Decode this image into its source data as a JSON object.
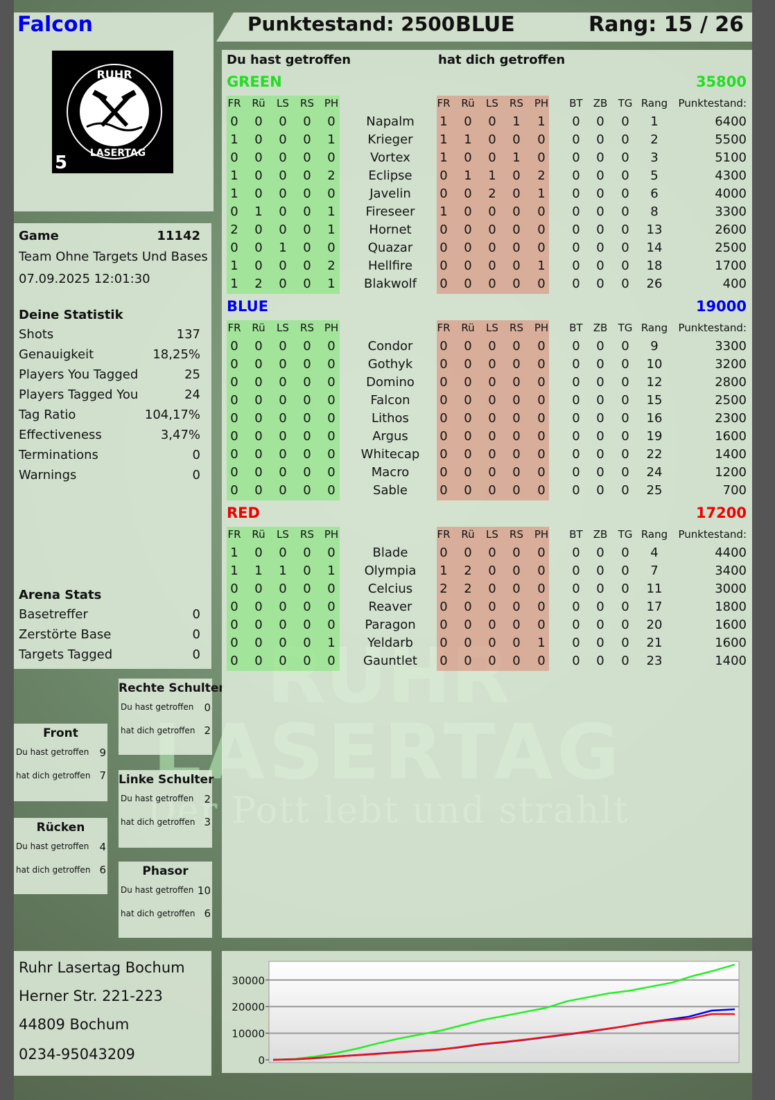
{
  "header": {
    "player": "Falcon",
    "player_color": "#0000ee",
    "score_label": "Punktestand: 2500",
    "team": "BLUE",
    "rank_label": "Rang: 15 / 26"
  },
  "logo": {
    "top": "RUHR",
    "bottom": "LASERTAG",
    "number": "5"
  },
  "game": {
    "label": "Game",
    "id": "11142",
    "mode": "Team Ohne Targets Und Bases",
    "datetime": "07.09.2025 12:01:30"
  },
  "stats": {
    "title": "Deine Statistik",
    "items": [
      {
        "label": "Shots",
        "value": "137"
      },
      {
        "label": "Genauigkeit",
        "value": "18,25%"
      },
      {
        "label": "Players You Tagged",
        "value": "25"
      },
      {
        "label": "Players Tagged You",
        "value": "24"
      },
      {
        "label": "Tag Ratio",
        "value": "104,17%"
      },
      {
        "label": "Effectiveness",
        "value": "3,47%"
      },
      {
        "label": "Terminations",
        "value": "0"
      },
      {
        "label": "Warnings",
        "value": "0"
      }
    ]
  },
  "arena": {
    "title": "Arena Stats",
    "items": [
      {
        "label": "Basetreffer",
        "value": "0"
      },
      {
        "label": "Zerstörte Base",
        "value": "0"
      },
      {
        "label": "Targets Tagged",
        "value": "0"
      }
    ]
  },
  "zones": [
    {
      "title": "Rechte Schulter",
      "hit_label": "Du hast getroffen",
      "hit": "0",
      "got_label": "hat dich getroffen",
      "got": "2"
    },
    {
      "title": "Front",
      "hit_label": "Du hast getroffen",
      "hit": "9",
      "got_label": "hat dich getroffen",
      "got": "7"
    },
    {
      "title": "Linke Schulter",
      "hit_label": "Du hast getroffen",
      "hit": "2",
      "got_label": "hat dich getroffen",
      "got": "3"
    },
    {
      "title": "Rücken",
      "hit_label": "Du hast getroffen",
      "hit": "4",
      "got_label": "hat dich getroffen",
      "got": "6"
    },
    {
      "title": "Phasor",
      "hit_label": "Du hast getroffen",
      "hit": "10",
      "got_label": "hat dich getroffen",
      "got": "6"
    }
  ],
  "address": {
    "name": "Ruhr Lasertag Bochum",
    "street": "Herner Str. 221-223",
    "city": "44809 Bochum",
    "phone": "0234-95043209"
  },
  "watermark": {
    "line1": "RUHR",
    "line2": "LASERTAG",
    "line3": "Der Pott lebt und strahlt"
  },
  "table": {
    "you_hit": "Du hast getroffen",
    "hit_you": "hat dich getroffen",
    "hit_cols": [
      "FR",
      "Rü",
      "LS",
      "RS",
      "PH"
    ],
    "extra_cols": [
      "BT",
      "ZB",
      "TG",
      "Rang",
      "Punktestand:"
    ],
    "teams": [
      {
        "name": "GREEN",
        "score": "35800",
        "color": "#22dd22",
        "players": [
          {
            "n": "Napalm",
            "h": [
              0,
              0,
              0,
              0,
              0
            ],
            "g": [
              1,
              0,
              0,
              1,
              1
            ],
            "e": [
              0,
              0,
              0
            ],
            "rank": 1,
            "pts": 6400
          },
          {
            "n": "Krieger",
            "h": [
              1,
              0,
              0,
              0,
              1
            ],
            "g": [
              1,
              1,
              0,
              0,
              0
            ],
            "e": [
              0,
              0,
              0
            ],
            "rank": 2,
            "pts": 5500
          },
          {
            "n": "Vortex",
            "h": [
              0,
              0,
              0,
              0,
              0
            ],
            "g": [
              1,
              0,
              0,
              1,
              0
            ],
            "e": [
              0,
              0,
              0
            ],
            "rank": 3,
            "pts": 5100
          },
          {
            "n": "Eclipse",
            "h": [
              1,
              0,
              0,
              0,
              2
            ],
            "g": [
              0,
              1,
              1,
              0,
              2
            ],
            "e": [
              0,
              0,
              0
            ],
            "rank": 5,
            "pts": 4300
          },
          {
            "n": "Javelin",
            "h": [
              1,
              0,
              0,
              0,
              0
            ],
            "g": [
              0,
              0,
              2,
              0,
              1
            ],
            "e": [
              0,
              0,
              0
            ],
            "rank": 6,
            "pts": 4000
          },
          {
            "n": "Fireseer",
            "h": [
              0,
              1,
              0,
              0,
              1
            ],
            "g": [
              1,
              0,
              0,
              0,
              0
            ],
            "e": [
              0,
              0,
              0
            ],
            "rank": 8,
            "pts": 3300
          },
          {
            "n": "Hornet",
            "h": [
              2,
              0,
              0,
              0,
              1
            ],
            "g": [
              0,
              0,
              0,
              0,
              0
            ],
            "e": [
              0,
              0,
              0
            ],
            "rank": 13,
            "pts": 2600
          },
          {
            "n": "Quazar",
            "h": [
              0,
              0,
              1,
              0,
              0
            ],
            "g": [
              0,
              0,
              0,
              0,
              0
            ],
            "e": [
              0,
              0,
              0
            ],
            "rank": 14,
            "pts": 2500
          },
          {
            "n": "Hellfire",
            "h": [
              1,
              0,
              0,
              0,
              2
            ],
            "g": [
              0,
              0,
              0,
              0,
              1
            ],
            "e": [
              0,
              0,
              0
            ],
            "rank": 18,
            "pts": 1700
          },
          {
            "n": "Blakwolf",
            "h": [
              1,
              2,
              0,
              0,
              1
            ],
            "g": [
              0,
              0,
              0,
              0,
              0
            ],
            "e": [
              0,
              0,
              0
            ],
            "rank": 26,
            "pts": 400
          }
        ]
      },
      {
        "name": "BLUE",
        "score": "19000",
        "color": "#0000ee",
        "players": [
          {
            "n": "Condor",
            "h": [
              0,
              0,
              0,
              0,
              0
            ],
            "g": [
              0,
              0,
              0,
              0,
              0
            ],
            "e": [
              0,
              0,
              0
            ],
            "rank": 9,
            "pts": 3300
          },
          {
            "n": "Gothyk",
            "h": [
              0,
              0,
              0,
              0,
              0
            ],
            "g": [
              0,
              0,
              0,
              0,
              0
            ],
            "e": [
              0,
              0,
              0
            ],
            "rank": 10,
            "pts": 3200
          },
          {
            "n": "Domino",
            "h": [
              0,
              0,
              0,
              0,
              0
            ],
            "g": [
              0,
              0,
              0,
              0,
              0
            ],
            "e": [
              0,
              0,
              0
            ],
            "rank": 12,
            "pts": 2800
          },
          {
            "n": "Falcon",
            "h": [
              0,
              0,
              0,
              0,
              0
            ],
            "g": [
              0,
              0,
              0,
              0,
              0
            ],
            "e": [
              0,
              0,
              0
            ],
            "rank": 15,
            "pts": 2500
          },
          {
            "n": "Lithos",
            "h": [
              0,
              0,
              0,
              0,
              0
            ],
            "g": [
              0,
              0,
              0,
              0,
              0
            ],
            "e": [
              0,
              0,
              0
            ],
            "rank": 16,
            "pts": 2300
          },
          {
            "n": "Argus",
            "h": [
              0,
              0,
              0,
              0,
              0
            ],
            "g": [
              0,
              0,
              0,
              0,
              0
            ],
            "e": [
              0,
              0,
              0
            ],
            "rank": 19,
            "pts": 1600
          },
          {
            "n": "Whitecap",
            "h": [
              0,
              0,
              0,
              0,
              0
            ],
            "g": [
              0,
              0,
              0,
              0,
              0
            ],
            "e": [
              0,
              0,
              0
            ],
            "rank": 22,
            "pts": 1400
          },
          {
            "n": "Macro",
            "h": [
              0,
              0,
              0,
              0,
              0
            ],
            "g": [
              0,
              0,
              0,
              0,
              0
            ],
            "e": [
              0,
              0,
              0
            ],
            "rank": 24,
            "pts": 1200
          },
          {
            "n": "Sable",
            "h": [
              0,
              0,
              0,
              0,
              0
            ],
            "g": [
              0,
              0,
              0,
              0,
              0
            ],
            "e": [
              0,
              0,
              0
            ],
            "rank": 25,
            "pts": 700
          }
        ]
      },
      {
        "name": "RED",
        "score": "17200",
        "color": "#ee0000",
        "players": [
          {
            "n": "Blade",
            "h": [
              1,
              0,
              0,
              0,
              0
            ],
            "g": [
              0,
              0,
              0,
              0,
              0
            ],
            "e": [
              0,
              0,
              0
            ],
            "rank": 4,
            "pts": 4400
          },
          {
            "n": "Olympia",
            "h": [
              1,
              1,
              1,
              0,
              1
            ],
            "g": [
              1,
              2,
              0,
              0,
              0
            ],
            "e": [
              0,
              0,
              0
            ],
            "rank": 7,
            "pts": 3400
          },
          {
            "n": "Celcius",
            "h": [
              0,
              0,
              0,
              0,
              0
            ],
            "g": [
              2,
              2,
              0,
              0,
              0
            ],
            "e": [
              0,
              0,
              0
            ],
            "rank": 11,
            "pts": 3000
          },
          {
            "n": "Reaver",
            "h": [
              0,
              0,
              0,
              0,
              0
            ],
            "g": [
              0,
              0,
              0,
              0,
              0
            ],
            "e": [
              0,
              0,
              0
            ],
            "rank": 17,
            "pts": 1800
          },
          {
            "n": "Paragon",
            "h": [
              0,
              0,
              0,
              0,
              0
            ],
            "g": [
              0,
              0,
              0,
              0,
              0
            ],
            "e": [
              0,
              0,
              0
            ],
            "rank": 20,
            "pts": 1600
          },
          {
            "n": "Yeldarb",
            "h": [
              0,
              0,
              0,
              0,
              1
            ],
            "g": [
              0,
              0,
              0,
              0,
              1
            ],
            "e": [
              0,
              0,
              0
            ],
            "rank": 21,
            "pts": 1600
          },
          {
            "n": "Gauntlet",
            "h": [
              0,
              0,
              0,
              0,
              0
            ],
            "g": [
              0,
              0,
              0,
              0,
              0
            ],
            "e": [
              0,
              0,
              0
            ],
            "rank": 23,
            "pts": 1400
          }
        ]
      }
    ]
  },
  "chart_data": {
    "type": "line",
    "title": "",
    "xlabel": "",
    "ylabel": "",
    "ylim": [
      0,
      37000
    ],
    "yticks": [
      "0",
      "10000",
      "20000",
      "30000"
    ],
    "grid": true,
    "series": [
      {
        "color": "#22ee22",
        "values": [
          0,
          300,
          1200,
          2500,
          4200,
          6200,
          8000,
          9500,
          11000,
          13000,
          15000,
          16500,
          18000,
          19500,
          22000,
          23500,
          25000,
          26000,
          27500,
          29000,
          31500,
          33500,
          35800
        ]
      },
      {
        "color": "#0000ee",
        "values": [
          0,
          200,
          700,
          1400,
          2000,
          2600,
          3200,
          3700,
          4600,
          5800,
          6600,
          7600,
          8700,
          9800,
          11000,
          12300,
          13800,
          15000,
          16200,
          18500,
          19000
        ]
      },
      {
        "color": "#ee1111",
        "values": [
          0,
          200,
          800,
          1400,
          1900,
          2500,
          3100,
          3600,
          4700,
          5900,
          6700,
          7700,
          8800,
          9900,
          11100,
          12300,
          13700,
          14800,
          15400,
          17200,
          17200
        ]
      }
    ]
  }
}
